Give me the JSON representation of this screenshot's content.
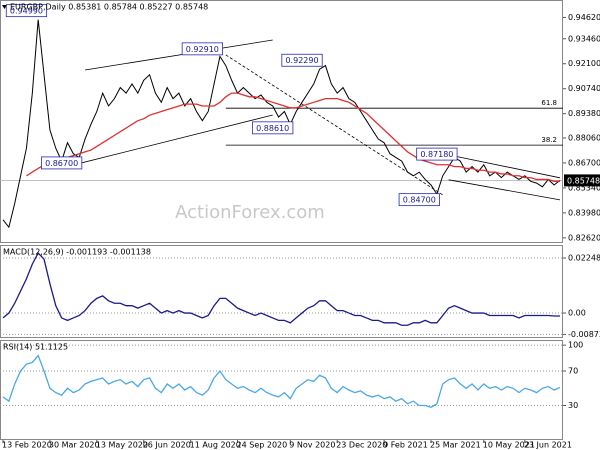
{
  "chart_data": [
    {
      "type": "line",
      "title": "EURGBP,Daily  0.85381 0.85784 0.85227 0.85748",
      "watermark": "ActionForex.com",
      "xlim": [
        0,
        95
      ],
      "ylim": [
        0.8234,
        0.9557
      ],
      "grid": false,
      "yticks": [
        {
          "value": 0.9462,
          "label": "0.94620"
        },
        {
          "value": 0.9346,
          "label": "0.93460"
        },
        {
          "value": 0.921,
          "label": "0.92100"
        },
        {
          "value": 0.9074,
          "label": "0.90740"
        },
        {
          "value": 0.8938,
          "label": "0.89380"
        },
        {
          "value": 0.8806,
          "label": "0.88060"
        },
        {
          "value": 0.867,
          "label": "0.86700"
        },
        {
          "value": 0.8534,
          "label": "0.85340"
        },
        {
          "value": 0.8398,
          "label": "0.83980"
        },
        {
          "value": 0.8262,
          "label": "0.82620"
        }
      ],
      "last_price": 0.85748,
      "series": [
        {
          "color": "#000000",
          "values": [
            0.836,
            0.832,
            0.845,
            0.86,
            0.875,
            0.905,
            0.945,
            0.915,
            0.885,
            0.875,
            0.868,
            0.878,
            0.872,
            0.87,
            0.88,
            0.888,
            0.895,
            0.905,
            0.898,
            0.902,
            0.908,
            0.905,
            0.91,
            0.905,
            0.912,
            0.915,
            0.905,
            0.9,
            0.908,
            0.902,
            0.905,
            0.898,
            0.902,
            0.895,
            0.89,
            0.895,
            0.91,
            0.925,
            0.92,
            0.912,
            0.905,
            0.908,
            0.905,
            0.902,
            0.904,
            0.9,
            0.898,
            0.892,
            0.895,
            0.888,
            0.895,
            0.9,
            0.905,
            0.91,
            0.918,
            0.92,
            0.91,
            0.905,
            0.908,
            0.902,
            0.9,
            0.895,
            0.89,
            0.885,
            0.88,
            0.878,
            0.872,
            0.87,
            0.868,
            0.862,
            0.86,
            0.862,
            0.858,
            0.855,
            0.85,
            0.86,
            0.865,
            0.87,
            0.868,
            0.862,
            0.865,
            0.862,
            0.866,
            0.86,
            0.862,
            0.859,
            0.862,
            0.86,
            0.858,
            0.86,
            0.857,
            0.856,
            0.854,
            0.858,
            0.855,
            0.8575
          ]
        },
        {
          "color": "#e03030",
          "values": [
            null,
            null,
            null,
            null,
            0.86,
            0.862,
            0.864,
            0.866,
            0.867,
            0.868,
            0.869,
            0.87,
            0.871,
            0.872,
            0.873,
            0.874,
            0.876,
            0.878,
            0.88,
            0.882,
            0.884,
            0.886,
            0.888,
            0.89,
            0.891,
            0.893,
            0.894,
            0.895,
            0.896,
            0.897,
            0.898,
            0.899,
            0.899,
            0.899,
            0.898,
            0.898,
            0.898,
            0.9,
            0.903,
            0.905,
            0.905,
            0.904,
            0.903,
            0.903,
            0.902,
            0.901,
            0.9,
            0.899,
            0.898,
            0.897,
            0.897,
            0.898,
            0.899,
            0.9,
            0.901,
            0.902,
            0.902,
            0.902,
            0.901,
            0.9,
            0.898,
            0.896,
            0.894,
            0.891,
            0.888,
            0.885,
            0.882,
            0.879,
            0.876,
            0.873,
            0.871,
            0.869,
            0.868,
            0.867,
            0.866,
            0.866,
            0.866,
            0.865,
            0.865,
            0.864,
            0.864,
            0.863,
            0.863,
            0.862,
            0.862,
            0.861,
            0.861,
            0.86,
            0.86,
            0.859,
            0.859,
            0.858,
            0.858,
            0.858,
            0.857,
            0.857
          ]
        }
      ],
      "levels": [
        {
          "label": "61.8",
          "value": 0.8968,
          "x": 38
        },
        {
          "label": "38.2",
          "value": 0.8767,
          "x": 38
        }
      ],
      "trendlines": [
        {
          "x": [
            14,
            46
          ],
          "y": [
            0.9176,
            0.9339
          ],
          "dash": false
        },
        {
          "x": [
            12,
            46
          ],
          "y": [
            0.8659,
            0.8931
          ],
          "dash": false
        },
        {
          "x": [
            38,
            75
          ],
          "y": [
            0.9258,
            0.8496
          ],
          "dash": true
        },
        {
          "x": [
            76,
            95
          ],
          "y": [
            0.8714,
            0.8589
          ],
          "dash": false
        },
        {
          "x": [
            76,
            95
          ],
          "y": [
            0.8578,
            0.8469
          ],
          "dash": false
        }
      ],
      "annotations": [
        {
          "value": 0.9499,
          "label": "0.94990",
          "x": 4
        },
        {
          "value": 0.867,
          "label": "0.86700",
          "x": 10
        },
        {
          "value": 0.9291,
          "label": "0.92910",
          "x": 34
        },
        {
          "value": 0.9229,
          "label": "0.92290",
          "x": 51
        },
        {
          "value": 0.8861,
          "label": "0.88610",
          "x": 46
        },
        {
          "value": 0.8718,
          "label": "0.87180",
          "x": 74
        },
        {
          "value": 0.847,
          "label": "0.84700",
          "x": 71
        }
      ]
    },
    {
      "type": "line",
      "title": "MACD(12,26,9) -0.001193 -0.001138",
      "xlim": [
        0,
        95
      ],
      "ylim": [
        -0.0102,
        0.0278
      ],
      "grid": true,
      "yticks": [
        0.022482,
        {
          "value": 0,
          "label": "0.00"
        },
        -0.008736
      ],
      "series": [
        {
          "color": "#1a1a8c",
          "values": [
            -0.002,
            0,
            0.004,
            0.009,
            0.014,
            0.02,
            0.0245,
            0.022,
            0.012,
            0.003,
            -0.002,
            -0.003,
            -0.002,
            -0.001,
            0.001,
            0.004,
            0.006,
            0.007,
            0.005,
            0.004,
            0.004,
            0.003,
            0.003,
            0.002,
            0.003,
            0.004,
            0.002,
            0,
            0.001,
            0,
            0.001,
            0,
            0,
            -0.001,
            -0.002,
            -0.001,
            0.003,
            0.006,
            0.006,
            0.004,
            0.002,
            0.001,
            0,
            -0.001,
            0,
            -0.001,
            -0.002,
            -0.003,
            -0.003,
            -0.004,
            -0.002,
            0,
            0.002,
            0.003,
            0.005,
            0.005,
            0.003,
            0.001,
            0.001,
            0,
            -0.001,
            -0.001,
            -0.002,
            -0.003,
            -0.003,
            -0.004,
            -0.004,
            -0.004,
            -0.005,
            -0.005,
            -0.004,
            -0.004,
            -0.003,
            -0.004,
            -0.004,
            -0.001,
            0.002,
            0.003,
            0.002,
            0.001,
            0,
            0,
            0,
            -0.001,
            -0.001,
            -0.001,
            -0.001,
            -0.001,
            -0.002,
            -0.001,
            -0.001,
            -0.001,
            -0.001,
            -0.001,
            -0.0012,
            -0.0012
          ]
        }
      ]
    },
    {
      "type": "line",
      "title": "RSI(14) 51.1125",
      "xlim": [
        0,
        95
      ],
      "ylim": [
        -10,
        106
      ],
      "grid": true,
      "yticks": [
        100,
        70,
        30
      ],
      "xticks": [
        {
          "value": 0,
          "label": "13 Feb 2020"
        },
        {
          "value": 8,
          "label": "30 Mar 2020"
        },
        {
          "value": 16,
          "label": "13 May 2020"
        },
        {
          "value": 24,
          "label": "26 Jun 2020"
        },
        {
          "value": 32,
          "label": "11 Aug 2020"
        },
        {
          "value": 40,
          "label": "24 Sep 2020"
        },
        {
          "value": 49,
          "label": "9 Nov 2020"
        },
        {
          "value": 57,
          "label": "23 Dec 2020"
        },
        {
          "value": 65,
          "label": "9 Feb 2021"
        },
        {
          "value": 73,
          "label": "25 Mar 2021"
        },
        {
          "value": 82,
          "label": "10 May 2021"
        },
        {
          "value": 89,
          "label": "23 Jun 2021"
        }
      ],
      "series": [
        {
          "color": "#4aa8e8",
          "values": [
            40,
            35,
            55,
            70,
            78,
            80,
            88,
            70,
            50,
            45,
            42,
            50,
            45,
            48,
            55,
            58,
            60,
            62,
            55,
            58,
            60,
            55,
            58,
            52,
            60,
            62,
            50,
            45,
            55,
            50,
            55,
            48,
            52,
            45,
            42,
            48,
            62,
            70,
            60,
            55,
            50,
            52,
            48,
            45,
            50,
            45,
            42,
            40,
            45,
            38,
            50,
            55,
            60,
            58,
            65,
            62,
            50,
            45,
            52,
            48,
            45,
            47,
            42,
            40,
            42,
            38,
            40,
            35,
            38,
            32,
            35,
            30,
            30,
            28,
            32,
            55,
            60,
            62,
            55,
            50,
            55,
            48,
            55,
            50,
            52,
            48,
            52,
            50,
            45,
            50,
            48,
            45,
            50,
            52,
            48,
            51
          ]
        }
      ]
    }
  ]
}
